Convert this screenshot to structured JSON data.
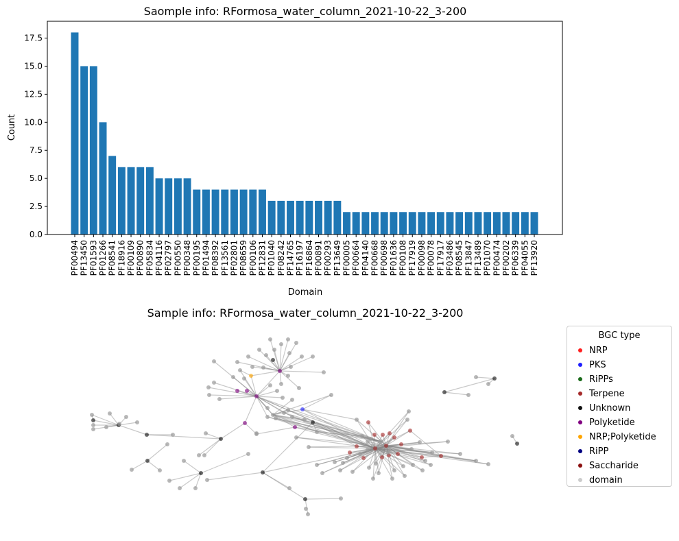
{
  "chart_data": [
    {
      "type": "bar",
      "title": "Saomple info: RFormosa_water_column_2021-10-22_3-200",
      "xlabel": "Domain",
      "ylabel": "Count",
      "ylim": [
        0,
        19
      ],
      "yticks": [
        "0.0",
        "2.5",
        "5.0",
        "7.5",
        "10.0",
        "12.5",
        "15.0",
        "17.5"
      ],
      "bar_color": "#1f77b4",
      "categories": [
        "PF00494",
        "PF13450",
        "PF01593",
        "PF01266",
        "PF08541",
        "PF18916",
        "PF00109",
        "PF00890",
        "PF05834",
        "PF04116",
        "PF02797",
        "PF00550",
        "PF00348",
        "PF00195",
        "PF01494",
        "PF08392",
        "PF13561",
        "PF02801",
        "PF08659",
        "PF00106",
        "PF12831",
        "PF01040",
        "PF08242",
        "PF14765",
        "PF16197",
        "PF16864",
        "PF00891",
        "PF00293",
        "PF13649",
        "PF00005",
        "PF00664",
        "PF04140",
        "PF00668",
        "PF00698",
        "PF01636",
        "PF00108",
        "PF17919",
        "PF00098",
        "PF00078",
        "PF17917",
        "PF03486",
        "PF08545",
        "PF13847",
        "PF13489",
        "PF01070",
        "PF00474",
        "PF00202",
        "PF06339",
        "PF04055",
        "PF13920"
      ],
      "values": [
        18,
        15,
        15,
        10,
        7,
        6,
        6,
        6,
        6,
        5,
        5,
        5,
        5,
        4,
        4,
        4,
        4,
        4,
        4,
        4,
        4,
        3,
        3,
        3,
        3,
        3,
        3,
        3,
        3,
        2,
        2,
        2,
        2,
        2,
        2,
        2,
        2,
        2,
        2,
        2,
        2,
        2,
        2,
        2,
        2,
        2,
        2,
        2,
        2,
        2
      ]
    },
    {
      "type": "network",
      "title": "Sample info: RFormosa_water_column_2021-10-22_3-200",
      "legend": {
        "title": "BGC type",
        "entries": [
          {
            "label": "NRP",
            "color": "#ff1f1f"
          },
          {
            "label": "PKS",
            "color": "#1f1fff"
          },
          {
            "label": "RiPPs",
            "color": "#1a6b1a"
          },
          {
            "label": "Terpene",
            "color": "#a52a2a"
          },
          {
            "label": "Unknown",
            "color": "#111111"
          },
          {
            "label": "Polyketide",
            "color": "#800080"
          },
          {
            "label": "NRP;Polyketide",
            "color": "#ffa500"
          },
          {
            "label": "RiPP",
            "color": "#000080"
          },
          {
            "label": "Saccharide",
            "color": "#8b1010"
          },
          {
            "label": "domain",
            "color": "#cccccc"
          }
        ]
      }
    }
  ]
}
